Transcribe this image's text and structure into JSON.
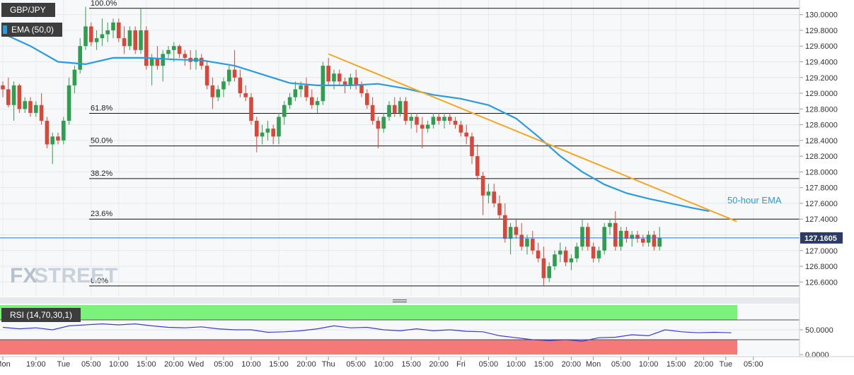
{
  "symbol": "GBP/JPY",
  "indicator_label": "EMA (50,0)",
  "rsi_label": "RSI (14,70,30,1)",
  "last_price": "127.1605",
  "watermark": {
    "fx": "FX",
    "street": "STREET"
  },
  "colors": {
    "bull": "#2e9e4f",
    "bear": "#d9473a",
    "ema": "#2a9be0",
    "trendline": "#f5a623",
    "rsi_line": "#3a3ad6",
    "rsi_over": "#7cf27c",
    "rsi_under": "#f47a7a",
    "watermark": "#b6c1cc"
  },
  "chart_data": [
    {
      "type": "candlestick",
      "title": "",
      "ylim": [
        126.45,
        130.15
      ],
      "yticks": [
        "130.0000",
        "129.8000",
        "129.6000",
        "129.4000",
        "129.2000",
        "129.0000",
        "128.8000",
        "128.6000",
        "128.4000",
        "128.2000",
        "128.0000",
        "127.8000",
        "127.6000",
        "127.4000",
        "127.2000",
        "127.0000",
        "126.8000",
        "126.6000"
      ],
      "xticks": [
        {
          "label": "Mon",
          "index": 0
        },
        {
          "label": "19:00",
          "index": 6
        },
        {
          "label": "Tue",
          "index": 11
        },
        {
          "label": "05:00",
          "index": 16
        },
        {
          "label": "10:00",
          "index": 21
        },
        {
          "label": "15:00",
          "index": 26
        },
        {
          "label": "20:00",
          "index": 31
        },
        {
          "label": "Wed",
          "index": 35
        },
        {
          "label": "05:00",
          "index": 40
        },
        {
          "label": "10:00",
          "index": 45
        },
        {
          "label": "15:00",
          "index": 50
        },
        {
          "label": "20:00",
          "index": 55
        },
        {
          "label": "Thu",
          "index": 59
        },
        {
          "label": "05:00",
          "index": 64
        },
        {
          "label": "10:00",
          "index": 69
        },
        {
          "label": "15:00",
          "index": 74
        },
        {
          "label": "20:00",
          "index": 79
        },
        {
          "label": "Fri",
          "index": 83
        },
        {
          "label": "05:00",
          "index": 88
        },
        {
          "label": "10:00",
          "index": 93
        },
        {
          "label": "15:00",
          "index": 98
        },
        {
          "label": "20:00",
          "index": 103
        },
        {
          "label": "Mon",
          "index": 107
        },
        {
          "label": "05:00",
          "index": 112
        },
        {
          "label": "10:00",
          "index": 117
        },
        {
          "label": "15:00",
          "index": 122
        },
        {
          "label": "20:00",
          "index": 127
        },
        {
          "label": "Tue",
          "index": 131
        },
        {
          "label": "05:00",
          "index": 136
        }
      ],
      "fib_levels": [
        {
          "label": "100.0%",
          "value": 130.08
        },
        {
          "label": "61.8%",
          "value": 128.745
        },
        {
          "label": "50.0%",
          "value": 128.33
        },
        {
          "label": "38.2%",
          "value": 127.915
        },
        {
          "label": "23.6%",
          "value": 127.4
        },
        {
          "label": "0.0%",
          "value": 126.55
        }
      ],
      "last_value": 127.1605,
      "ema_label": "50-hour EMA",
      "ema": [
        {
          "i": 0,
          "v": 129.76
        },
        {
          "i": 5,
          "v": 129.6
        },
        {
          "i": 10,
          "v": 129.4
        },
        {
          "i": 15,
          "v": 129.37
        },
        {
          "i": 20,
          "v": 129.45
        },
        {
          "i": 26,
          "v": 129.45
        },
        {
          "i": 31,
          "v": 129.43
        },
        {
          "i": 36,
          "v": 129.42
        },
        {
          "i": 42,
          "v": 129.35
        },
        {
          "i": 47,
          "v": 129.24
        },
        {
          "i": 52,
          "v": 129.13
        },
        {
          "i": 57,
          "v": 129.1
        },
        {
          "i": 63,
          "v": 129.1
        },
        {
          "i": 68,
          "v": 129.12
        },
        {
          "i": 73,
          "v": 129.06
        },
        {
          "i": 78,
          "v": 128.98
        },
        {
          "i": 83,
          "v": 128.93
        },
        {
          "i": 88,
          "v": 128.85
        },
        {
          "i": 93,
          "v": 128.68
        },
        {
          "i": 97,
          "v": 128.45
        },
        {
          "i": 101,
          "v": 128.2
        },
        {
          "i": 105,
          "v": 128.0
        },
        {
          "i": 109,
          "v": 127.84
        },
        {
          "i": 113,
          "v": 127.73
        },
        {
          "i": 117,
          "v": 127.66
        },
        {
          "i": 121,
          "v": 127.6
        },
        {
          "i": 125,
          "v": 127.54
        },
        {
          "i": 128,
          "v": 127.5
        }
      ],
      "trendline": [
        {
          "i": 59,
          "v": 129.5
        },
        {
          "i": 133,
          "v": 127.37
        }
      ],
      "candles": [
        [
          129.1,
          129.15,
          128.95,
          129.05
        ],
        [
          129.05,
          129.2,
          128.82,
          128.85
        ],
        [
          128.85,
          129.15,
          128.65,
          129.1
        ],
        [
          129.1,
          129.12,
          128.75,
          128.8
        ],
        [
          128.8,
          128.95,
          128.75,
          128.9
        ],
        [
          128.9,
          128.95,
          128.7,
          128.75
        ],
        [
          128.75,
          128.9,
          128.7,
          128.85
        ],
        [
          128.85,
          129.0,
          128.6,
          128.65
        ],
        [
          128.65,
          128.7,
          128.3,
          128.35
        ],
        [
          128.35,
          128.5,
          128.1,
          128.45
        ],
        [
          128.45,
          128.5,
          128.35,
          128.4
        ],
        [
          128.4,
          128.7,
          128.35,
          128.65
        ],
        [
          128.65,
          129.2,
          128.6,
          129.1
        ],
        [
          129.1,
          129.35,
          129.0,
          129.3
        ],
        [
          129.3,
          129.7,
          129.25,
          129.6
        ],
        [
          129.6,
          130.1,
          129.55,
          129.85
        ],
        [
          129.85,
          129.9,
          129.6,
          129.65
        ],
        [
          129.65,
          129.8,
          129.55,
          129.7
        ],
        [
          129.7,
          129.95,
          129.6,
          129.75
        ],
        [
          129.75,
          129.9,
          129.65,
          129.8
        ],
        [
          129.8,
          129.95,
          129.7,
          129.9
        ],
        [
          129.9,
          129.95,
          129.65,
          129.7
        ],
        [
          129.7,
          129.85,
          129.5,
          129.6
        ],
        [
          129.6,
          129.85,
          129.55,
          129.8
        ],
        [
          129.8,
          129.85,
          129.5,
          129.55
        ],
        [
          129.55,
          130.08,
          129.5,
          129.8
        ],
        [
          129.8,
          129.85,
          129.3,
          129.35
        ],
        [
          129.35,
          129.5,
          129.1,
          129.45
        ],
        [
          129.45,
          129.6,
          129.3,
          129.35
        ],
        [
          129.35,
          129.55,
          129.15,
          129.5
        ],
        [
          129.5,
          129.6,
          129.45,
          129.55
        ],
        [
          129.55,
          129.65,
          129.4,
          129.6
        ],
        [
          129.6,
          129.62,
          129.45,
          129.5
        ],
        [
          129.5,
          129.55,
          129.35,
          129.45
        ],
        [
          129.45,
          129.55,
          129.3,
          129.4
        ],
        [
          129.4,
          129.55,
          129.3,
          129.45
        ],
        [
          129.45,
          129.5,
          129.3,
          129.35
        ],
        [
          129.35,
          129.4,
          129.05,
          129.1
        ],
        [
          129.1,
          129.2,
          128.8,
          128.95
        ],
        [
          128.95,
          129.1,
          128.9,
          129.05
        ],
        [
          129.05,
          129.2,
          128.95,
          129.15
        ],
        [
          129.15,
          129.35,
          129.1,
          129.3
        ],
        [
          129.3,
          129.55,
          129.15,
          129.2
        ],
        [
          129.2,
          129.3,
          128.95,
          129.0
        ],
        [
          129.0,
          129.1,
          128.9,
          128.95
        ],
        [
          128.95,
          129.0,
          128.6,
          128.65
        ],
        [
          128.65,
          128.7,
          128.25,
          128.45
        ],
        [
          128.45,
          128.6,
          128.35,
          128.5
        ],
        [
          128.5,
          128.65,
          128.4,
          128.55
        ],
        [
          128.55,
          128.6,
          128.35,
          128.45
        ],
        [
          128.45,
          128.75,
          128.35,
          128.7
        ],
        [
          128.7,
          128.9,
          128.6,
          128.85
        ],
        [
          128.85,
          129.0,
          128.8,
          128.95
        ],
        [
          128.95,
          129.15,
          128.9,
          129.05
        ],
        [
          129.05,
          129.15,
          128.95,
          129.1
        ],
        [
          129.1,
          129.2,
          128.9,
          128.95
        ],
        [
          128.95,
          129.05,
          128.8,
          128.85
        ],
        [
          128.85,
          128.95,
          128.75,
          128.9
        ],
        [
          128.9,
          129.4,
          128.85,
          129.35
        ],
        [
          129.35,
          129.45,
          129.1,
          129.15
        ],
        [
          129.15,
          129.3,
          129.05,
          129.25
        ],
        [
          129.25,
          129.3,
          129.1,
          129.15
        ],
        [
          129.15,
          129.2,
          129.0,
          129.1
        ],
        [
          129.1,
          129.25,
          129.05,
          129.2
        ],
        [
          129.2,
          129.3,
          129.05,
          129.1
        ],
        [
          129.1,
          129.15,
          128.95,
          129.0
        ],
        [
          129.0,
          129.05,
          128.8,
          128.85
        ],
        [
          128.85,
          128.95,
          128.6,
          128.65
        ],
        [
          128.65,
          128.7,
          128.3,
          128.55
        ],
        [
          128.55,
          128.75,
          128.5,
          128.7
        ],
        [
          128.7,
          128.9,
          128.65,
          128.85
        ],
        [
          128.85,
          128.95,
          128.7,
          128.75
        ],
        [
          128.75,
          128.95,
          128.7,
          128.9
        ],
        [
          128.9,
          128.95,
          128.6,
          128.65
        ],
        [
          128.65,
          128.75,
          128.55,
          128.7
        ],
        [
          128.7,
          128.75,
          128.5,
          128.6
        ],
        [
          128.6,
          128.7,
          128.3,
          128.55
        ],
        [
          128.55,
          128.65,
          128.5,
          128.6
        ],
        [
          128.6,
          128.75,
          128.55,
          128.7
        ],
        [
          128.7,
          128.75,
          128.6,
          128.65
        ],
        [
          128.65,
          128.75,
          128.55,
          128.7
        ],
        [
          128.7,
          128.75,
          128.6,
          128.65
        ],
        [
          128.65,
          128.7,
          128.55,
          128.6
        ],
        [
          128.6,
          128.65,
          128.45,
          128.5
        ],
        [
          128.5,
          128.6,
          128.35,
          128.45
        ],
        [
          128.45,
          128.5,
          128.1,
          128.2
        ],
        [
          128.2,
          128.35,
          127.9,
          127.95
        ],
        [
          127.95,
          128.0,
          127.45,
          127.7
        ],
        [
          127.7,
          127.85,
          127.6,
          127.75
        ],
        [
          127.75,
          127.85,
          127.55,
          127.6
        ],
        [
          127.6,
          127.7,
          127.4,
          127.45
        ],
        [
          127.45,
          127.6,
          127.1,
          127.15
        ],
        [
          127.15,
          127.35,
          126.95,
          127.3
        ],
        [
          127.3,
          127.4,
          127.15,
          127.2
        ],
        [
          127.2,
          127.35,
          127.0,
          127.05
        ],
        [
          127.05,
          127.2,
          126.95,
          127.15
        ],
        [
          127.15,
          127.25,
          126.95,
          127.0
        ],
        [
          127.0,
          127.1,
          126.85,
          126.9
        ],
        [
          126.9,
          127.05,
          126.55,
          126.65
        ],
        [
          126.65,
          126.85,
          126.6,
          126.8
        ],
        [
          126.8,
          127.0,
          126.75,
          126.95
        ],
        [
          126.95,
          127.1,
          126.85,
          127.0
        ],
        [
          127.0,
          127.05,
          126.8,
          126.85
        ],
        [
          126.85,
          126.95,
          126.75,
          126.9
        ],
        [
          126.9,
          127.1,
          126.85,
          127.05
        ],
        [
          127.05,
          127.4,
          127.0,
          127.3
        ],
        [
          127.3,
          127.35,
          127.0,
          127.05
        ],
        [
          127.05,
          127.1,
          126.85,
          126.9
        ],
        [
          126.9,
          127.05,
          126.85,
          127.0
        ],
        [
          127.0,
          127.35,
          126.95,
          127.3
        ],
        [
          127.3,
          127.4,
          127.2,
          127.35
        ],
        [
          127.35,
          127.5,
          127.0,
          127.05
        ],
        [
          127.05,
          127.3,
          127.0,
          127.25
        ],
        [
          127.25,
          127.3,
          127.1,
          127.15
        ],
        [
          127.15,
          127.25,
          127.05,
          127.2
        ],
        [
          127.2,
          127.25,
          127.1,
          127.15
        ],
        [
          127.15,
          127.2,
          127.05,
          127.1
        ],
        [
          127.1,
          127.25,
          127.05,
          127.2
        ],
        [
          127.2,
          127.25,
          127.0,
          127.05
        ],
        [
          127.05,
          127.3,
          127.0,
          127.16
        ]
      ],
      "candle_index_offset": 0
    },
    {
      "type": "line",
      "title": "",
      "ylim": [
        0,
        100
      ],
      "yticks": [
        "50.0000",
        "0.0000"
      ],
      "overbought": 70,
      "oversold": 30,
      "rsi": [
        [
          0,
          55
        ],
        [
          3,
          52
        ],
        [
          6,
          54
        ],
        [
          9,
          50
        ],
        [
          12,
          58
        ],
        [
          15,
          60
        ],
        [
          18,
          62
        ],
        [
          21,
          60
        ],
        [
          24,
          62
        ],
        [
          27,
          58
        ],
        [
          30,
          55
        ],
        [
          33,
          54
        ],
        [
          36,
          56
        ],
        [
          39,
          52
        ],
        [
          42,
          50
        ],
        [
          45,
          50
        ],
        [
          48,
          45
        ],
        [
          51,
          46
        ],
        [
          54,
          48
        ],
        [
          57,
          52
        ],
        [
          60,
          58
        ],
        [
          63,
          54
        ],
        [
          66,
          55
        ],
        [
          69,
          50
        ],
        [
          72,
          48
        ],
        [
          75,
          52
        ],
        [
          78,
          48
        ],
        [
          81,
          50
        ],
        [
          84,
          47
        ],
        [
          87,
          46
        ],
        [
          90,
          38
        ],
        [
          93,
          34
        ],
        [
          96,
          30
        ],
        [
          99,
          28
        ],
        [
          102,
          30
        ],
        [
          105,
          27
        ],
        [
          108,
          34
        ],
        [
          111,
          35
        ],
        [
          114,
          40
        ],
        [
          117,
          38
        ],
        [
          120,
          50
        ],
        [
          123,
          46
        ],
        [
          126,
          44
        ],
        [
          129,
          45
        ],
        [
          132,
          44
        ]
      ]
    }
  ]
}
